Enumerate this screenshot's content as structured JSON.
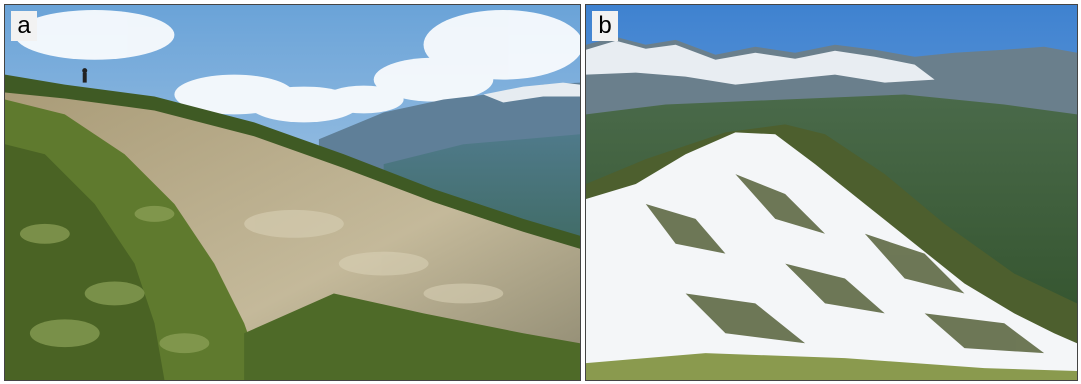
{
  "panels": [
    {
      "label": "a",
      "scene": "hillside-slope"
    },
    {
      "label": "b",
      "scene": "snowy-ridge"
    }
  ],
  "colors": {
    "sky_a": "#7db0e0",
    "sky_b": "#4f8fd6",
    "grass": "#5f7a2e",
    "dry_soil": "#b8ad8a",
    "snow": "#f4f6f8",
    "forest": "#2f5a2a",
    "distant_mountain": "#6f8fa8"
  }
}
